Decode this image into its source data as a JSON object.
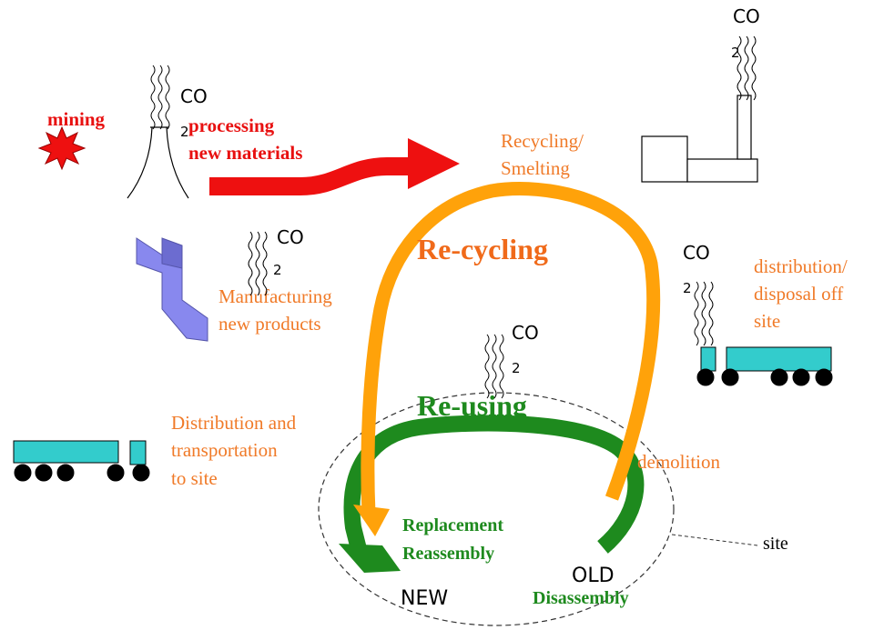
{
  "labels": {
    "mining": "mining",
    "processing": [
      "processing",
      "new materials"
    ],
    "recycling_smelting": [
      "Recycling/",
      "Smelting"
    ],
    "re_cycling": "Re-cycling",
    "manufacturing": [
      "Manufacturing",
      "new products"
    ],
    "distribution_disposal": [
      "distribution/",
      "disposal off",
      "site"
    ],
    "re_using": "Re-using",
    "distribution_transport": [
      "Distribution and",
      "transportation",
      "to site"
    ],
    "demolition": "demolition",
    "replacement": [
      "Replacement",
      "Reassembly"
    ],
    "new": "NEW",
    "old": "OLD",
    "disassembly": "Disassembly",
    "site": "site"
  },
  "emissions": [
    {
      "gas": "CO",
      "subscript": "2"
    },
    {
      "gas": "CO",
      "subscript": "2"
    },
    {
      "gas": "CO",
      "subscript": "2"
    },
    {
      "gas": "CO",
      "subscript": "2"
    },
    {
      "gas": "CO",
      "subscript": "2"
    }
  ]
}
